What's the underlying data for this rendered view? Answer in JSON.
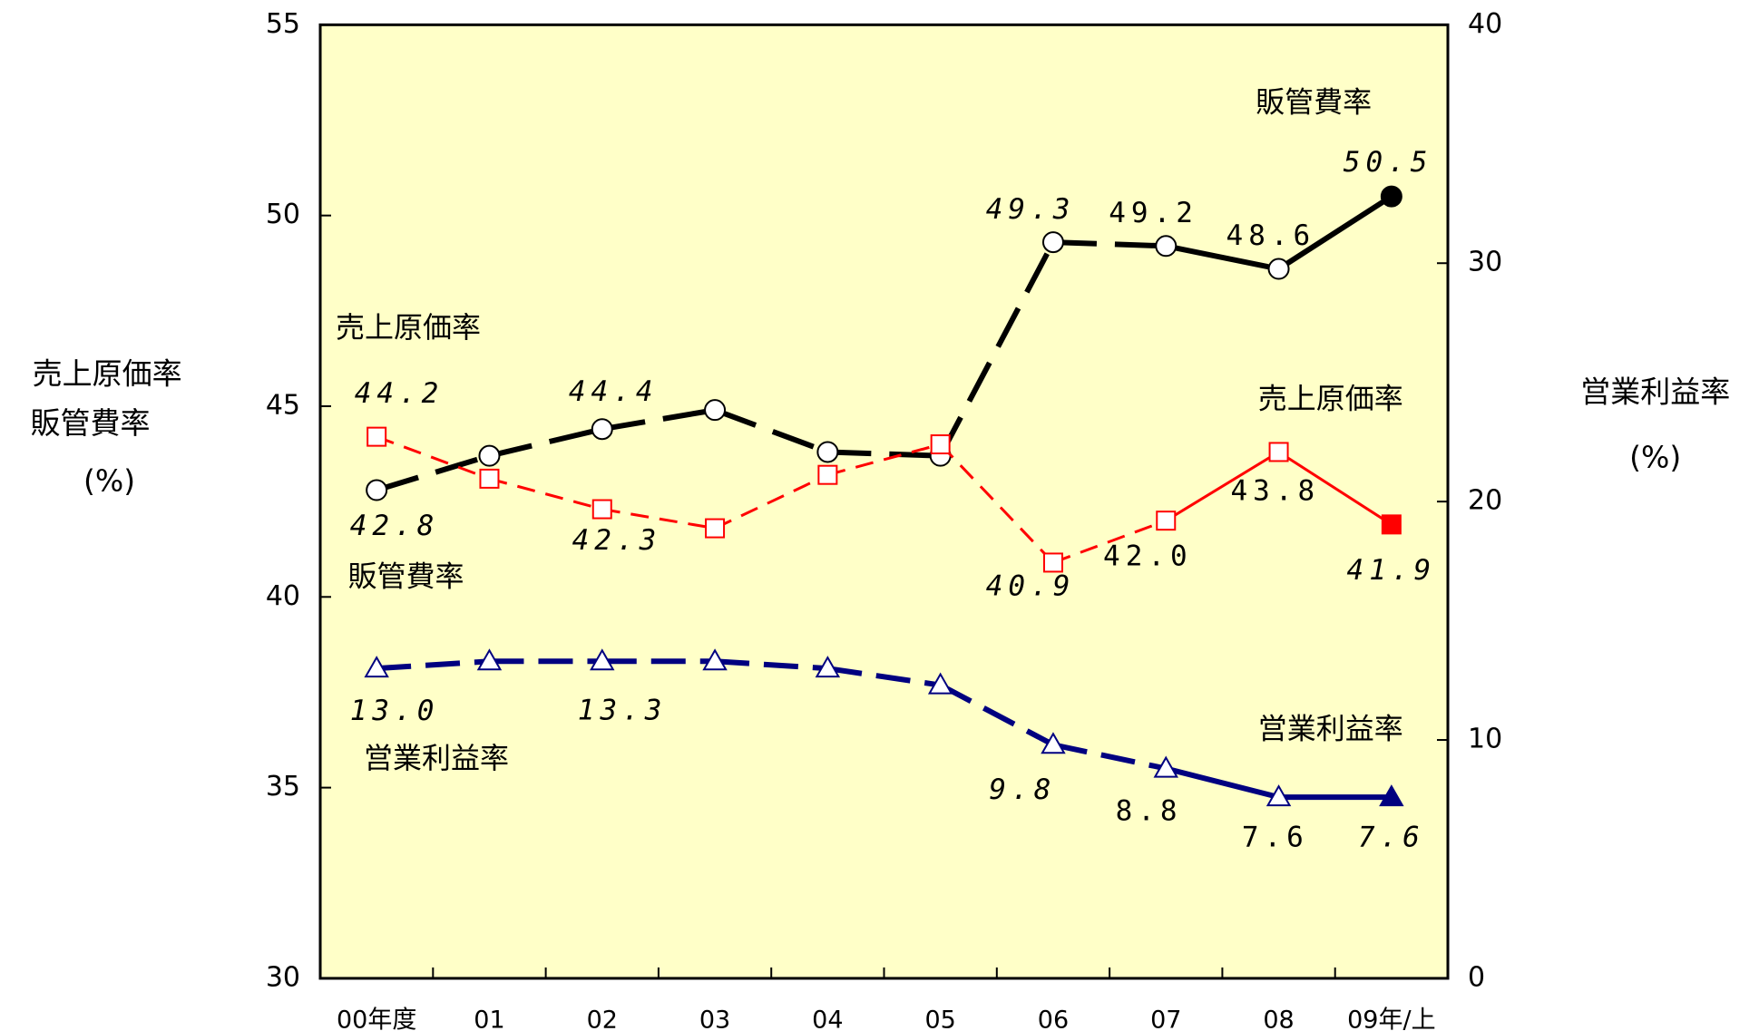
{
  "chart_data": {
    "type": "line",
    "categories": [
      "00年度",
      "01",
      "02",
      "03",
      "04",
      "05",
      "06",
      "07",
      "08",
      "09年/上"
    ],
    "ylabel": [
      "売上原価率",
      "販管費率",
      "(%)"
    ],
    "y2label": [
      "営業利益率",
      "(%)"
    ],
    "ylim": [
      30,
      55
    ],
    "yticks": [
      30,
      35,
      40,
      45,
      50,
      55
    ],
    "y2lim": [
      0,
      40
    ],
    "y2ticks": [
      0,
      10,
      20,
      30,
      40
    ],
    "background": "#ffffc8",
    "series": [
      {
        "name": "販管費率",
        "color": "#000000",
        "axis": "y",
        "values": [
          42.8,
          43.7,
          44.4,
          44.9,
          43.8,
          43.7,
          49.3,
          49.2,
          48.6,
          50.5
        ],
        "value_labels": [
          "42.8",
          null,
          "44.4",
          null,
          null,
          null,
          "49.3",
          "49.2",
          "48.6",
          "50.5"
        ]
      },
      {
        "name": "売上原価率",
        "color": "#ff0000",
        "axis": "y",
        "values": [
          44.2,
          43.1,
          42.3,
          41.8,
          43.2,
          44.0,
          40.9,
          42.0,
          43.8,
          41.9
        ],
        "value_labels": [
          "44.2",
          null,
          "42.3",
          null,
          null,
          null,
          "40.9",
          "42.0",
          "43.8",
          "41.9"
        ]
      },
      {
        "name": "営業利益率",
        "color": "#000080",
        "axis": "y2",
        "values": [
          13.0,
          13.3,
          13.3,
          13.3,
          13.0,
          12.3,
          9.8,
          8.8,
          7.6,
          7.6
        ],
        "value_labels": [
          "13.0",
          null,
          "13.3",
          null,
          null,
          null,
          "9.8",
          "8.8",
          "7.6",
          "7.6"
        ]
      }
    ],
    "annotations": [
      "販管費率",
      "売上原価率",
      "営業利益率",
      "売上原価率",
      "販管費率",
      "営業利益率"
    ]
  }
}
